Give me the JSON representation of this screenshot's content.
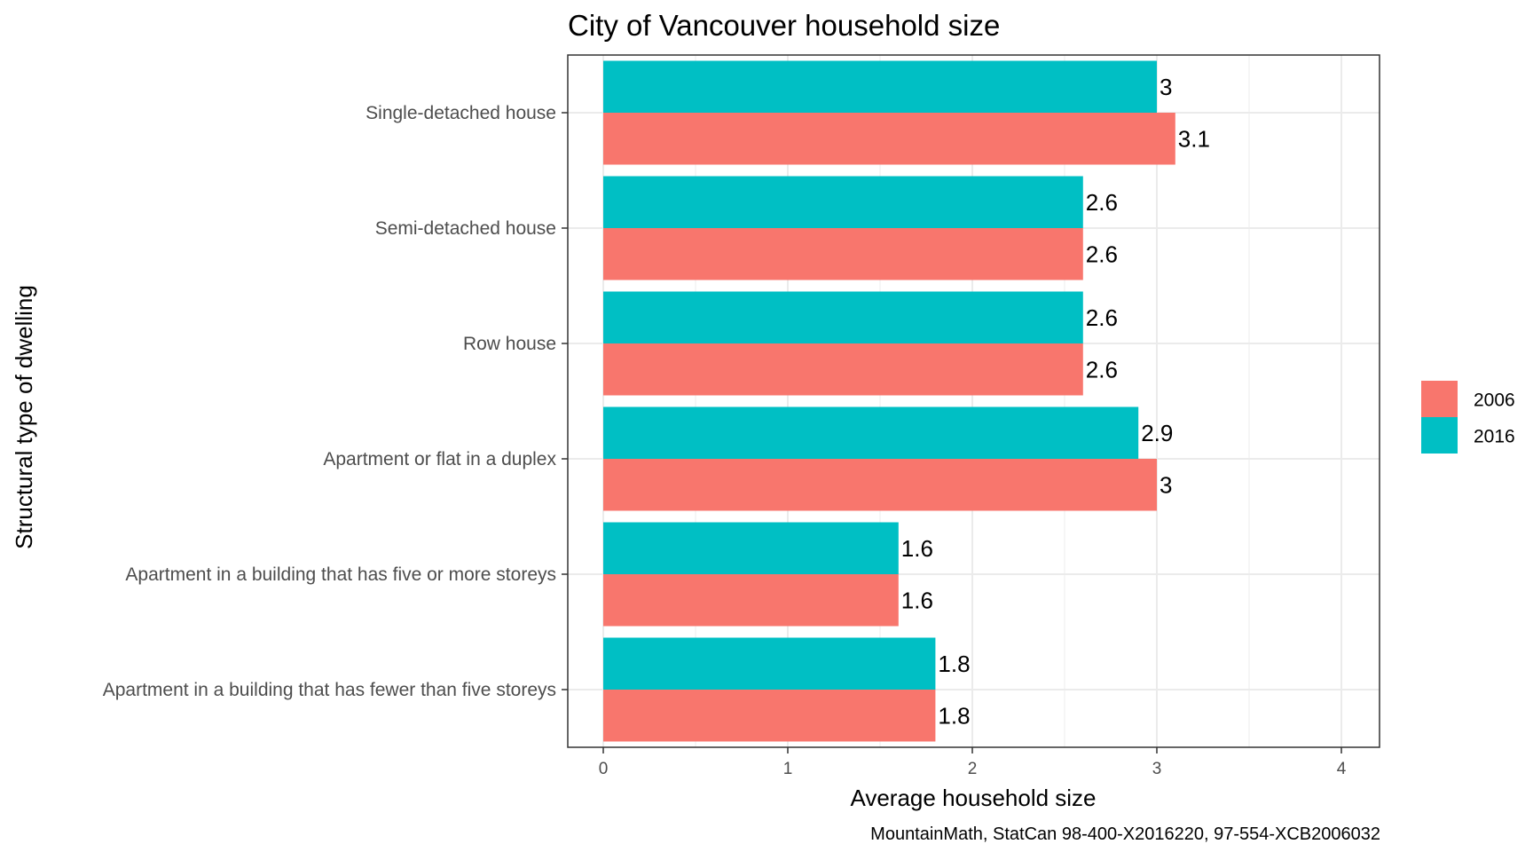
{
  "chart_data": {
    "type": "bar",
    "orientation": "horizontal",
    "title": "City of Vancouver household size",
    "xlabel": "Average household size",
    "ylabel": "Structural type of dwelling",
    "caption": "MountainMath, StatCan 98-400-X2016220, 97-554-XCB2006032",
    "xlim": [
      0,
      4
    ],
    "xticks": [
      "0",
      "1",
      "2",
      "3",
      "4"
    ],
    "categories": [
      "Single-detached house",
      "Semi-detached house",
      "Row house",
      "Apartment or flat in a duplex",
      "Apartment in a building that has five or more storeys",
      "Apartment in a building that has fewer than five storeys"
    ],
    "series": [
      {
        "name": "2006",
        "color": "#F8766D",
        "values": [
          3.1,
          2.6,
          2.6,
          3.0,
          1.6,
          1.8
        ],
        "labels": [
          "3.1",
          "2.6",
          "2.6",
          "3",
          "1.6",
          "1.8"
        ]
      },
      {
        "name": "2016",
        "color": "#00BFC4",
        "values": [
          3.0,
          2.6,
          2.6,
          2.9,
          1.6,
          1.8
        ],
        "labels": [
          "3",
          "2.6",
          "2.6",
          "2.9",
          "1.6",
          "1.8"
        ]
      }
    ],
    "grid": true,
    "legend": "right"
  }
}
